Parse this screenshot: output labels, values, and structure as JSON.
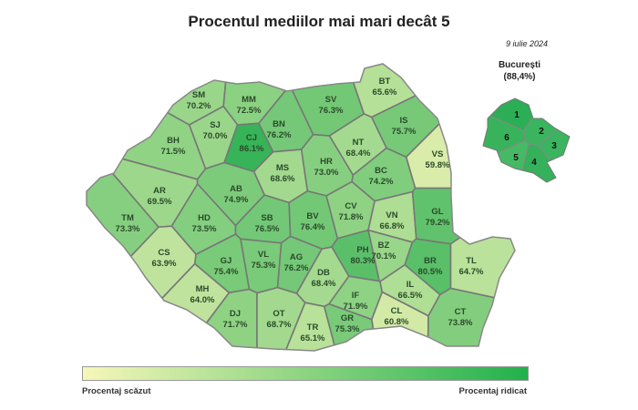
{
  "title": "Procentul mediilor mai mari decât 5",
  "date": "9 iulie 2024",
  "bucharest": {
    "name": "București",
    "value_label": "(88,4%)",
    "value": 88.4,
    "sectors": [
      "1",
      "2",
      "3",
      "4",
      "5",
      "6"
    ]
  },
  "legend": {
    "low": "Procentaj scăzut",
    "high": "Procentaj ridicat",
    "low_color": "#f6f7b8",
    "high_color": "#22b14c"
  },
  "counties": [
    {
      "code": "BT",
      "label": "65.6%",
      "value": 65.6
    },
    {
      "code": "SV",
      "label": "76.3%",
      "value": 76.3
    },
    {
      "code": "MM",
      "label": "72.5%",
      "value": 72.5
    },
    {
      "code": "SM",
      "label": "70.2%",
      "value": 70.2
    },
    {
      "code": "IS",
      "label": "75.7%",
      "value": 75.7
    },
    {
      "code": "BN",
      "label": "76.2%",
      "value": 76.2
    },
    {
      "code": "SJ",
      "label": "70.0%",
      "value": 70.0
    },
    {
      "code": "BH",
      "label": "71.5%",
      "value": 71.5
    },
    {
      "code": "CJ",
      "label": "86.1%",
      "value": 86.1
    },
    {
      "code": "NT",
      "label": "68.4%",
      "value": 68.4
    },
    {
      "code": "VS",
      "label": "59.8%",
      "value": 59.8
    },
    {
      "code": "MS",
      "label": "68.6%",
      "value": 68.6
    },
    {
      "code": "HR",
      "label": "73.0%",
      "value": 73.0
    },
    {
      "code": "BC",
      "label": "74.2%",
      "value": 74.2
    },
    {
      "code": "AR",
      "label": "69.5%",
      "value": 69.5
    },
    {
      "code": "AB",
      "label": "74.9%",
      "value": 74.9
    },
    {
      "code": "TM",
      "label": "73.3%",
      "value": 73.3
    },
    {
      "code": "HD",
      "label": "73.5%",
      "value": 73.5
    },
    {
      "code": "SB",
      "label": "76.5%",
      "value": 76.5
    },
    {
      "code": "BV",
      "label": "76.4%",
      "value": 76.4
    },
    {
      "code": "CV",
      "label": "71.8%",
      "value": 71.8
    },
    {
      "code": "VN",
      "label": "66.8%",
      "value": 66.8
    },
    {
      "code": "GL",
      "label": "79.2%",
      "value": 79.2
    },
    {
      "code": "CS",
      "label": "63.9%",
      "value": 63.9
    },
    {
      "code": "GJ",
      "label": "75.4%",
      "value": 75.4
    },
    {
      "code": "VL",
      "label": "75.3%",
      "value": 75.3
    },
    {
      "code": "AG",
      "label": "76.2%",
      "value": 76.2
    },
    {
      "code": "PH",
      "label": "80.3%",
      "value": 80.3
    },
    {
      "code": "BZ",
      "label": "70.1%",
      "value": 70.1
    },
    {
      "code": "BR",
      "label": "80.5%",
      "value": 80.5
    },
    {
      "code": "TL",
      "label": "64.7%",
      "value": 64.7
    },
    {
      "code": "DB",
      "label": "68.4%",
      "value": 68.4
    },
    {
      "code": "MH",
      "label": "64.0%",
      "value": 64.0
    },
    {
      "code": "IF",
      "label": "71.9%",
      "value": 71.9
    },
    {
      "code": "IL",
      "label": "66.5%",
      "value": 66.5
    },
    {
      "code": "DJ",
      "label": "71.7%",
      "value": 71.7
    },
    {
      "code": "OT",
      "label": "68.7%",
      "value": 68.7
    },
    {
      "code": "TR",
      "label": "65.1%",
      "value": 65.1
    },
    {
      "code": "GR",
      "label": "75.3%",
      "value": 75.3
    },
    {
      "code": "CL",
      "label": "60.8%",
      "value": 60.8
    },
    {
      "code": "CT",
      "label": "73.8%",
      "value": 73.8
    }
  ]
}
